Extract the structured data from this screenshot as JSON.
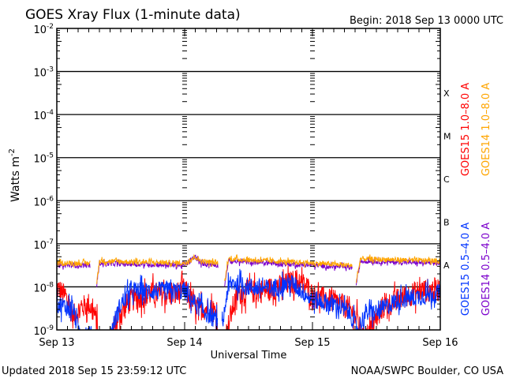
{
  "chart_data": {
    "type": "line",
    "title": "GOES Xray Flux (1-minute data)",
    "begin_label": "Begin:  2018 Sep 13 0000 UTC",
    "xlabel": "Universal Time",
    "ylabel": "Watts m",
    "ylabel_sup": "-2",
    "x_unit": "hours since 2018 Sep 13 0000 UTC",
    "xlim": [
      0,
      72
    ],
    "x_ticks": [
      {
        "h": 0,
        "label": "Sep 13"
      },
      {
        "h": 24,
        "label": "Sep 14"
      },
      {
        "h": 48,
        "label": "Sep 15"
      },
      {
        "h": 72,
        "label": "Sep 16"
      }
    ],
    "y_scale": "log",
    "ylim_exponent": [
      -9,
      -2
    ],
    "y_ticks": [
      {
        "exp": -2,
        "base": "10",
        "sup": "-2"
      },
      {
        "exp": -3,
        "base": "10",
        "sup": "-3"
      },
      {
        "exp": -4,
        "base": "10",
        "sup": "-4"
      },
      {
        "exp": -5,
        "base": "10",
        "sup": "-5"
      },
      {
        "exp": -6,
        "base": "10",
        "sup": "-6"
      },
      {
        "exp": -7,
        "base": "10",
        "sup": "-7"
      },
      {
        "exp": -8,
        "base": "10",
        "sup": "-8"
      },
      {
        "exp": -9,
        "base": "10",
        "sup": "-9"
      }
    ],
    "flare_classes": [
      {
        "label": "X",
        "exp": -3.5
      },
      {
        "label": "M",
        "exp": -4.5
      },
      {
        "label": "C",
        "exp": -5.5
      },
      {
        "label": "B",
        "exp": -6.5
      },
      {
        "label": "A",
        "exp": -7.5
      }
    ],
    "value_unit": "log10(W m^-2)",
    "series": [
      {
        "name": "GOES15 1.0-8.0 A",
        "color": "#ff0000",
        "noise": 0.28,
        "points": [
          [
            0,
            -8.0
          ],
          [
            2,
            -8.3
          ],
          [
            3,
            -8.7
          ],
          [
            4.5,
            -8.5
          ],
          [
            6,
            -8.4
          ],
          [
            7,
            -8.6
          ],
          [
            7.8,
            -9.0
          ],
          null,
          [
            10.5,
            -9.0
          ],
          [
            12,
            -8.6
          ],
          [
            14,
            -8.3
          ],
          [
            18,
            -8.15
          ],
          [
            22,
            -8.2
          ],
          [
            24,
            -8.05
          ],
          [
            25,
            -8.3
          ],
          [
            26.5,
            -8.5
          ],
          [
            28,
            -8.5
          ],
          [
            30.2,
            -8.6
          ],
          null,
          [
            31.8,
            -9.1
          ],
          [
            33,
            -8.5
          ],
          [
            34,
            -8.15
          ],
          [
            38,
            -8.1
          ],
          [
            42,
            -8.0
          ],
          [
            45,
            -7.85
          ],
          [
            47,
            -8.0
          ],
          [
            48,
            -8.2
          ],
          [
            52,
            -8.35
          ],
          [
            55,
            -8.5
          ],
          [
            56.5,
            -8.8
          ],
          [
            57.5,
            -9.2
          ],
          [
            59,
            -9.0
          ],
          [
            61,
            -8.5
          ],
          [
            64,
            -8.3
          ],
          [
            68,
            -8.1
          ],
          [
            72,
            -8.05
          ]
        ]
      },
      {
        "name": "GOES15 0.5-4.0 A",
        "color": "#0033ff",
        "noise": 0.22,
        "points": [
          [
            0,
            -8.4
          ],
          [
            3,
            -8.5
          ],
          [
            4,
            -9.0
          ],
          [
            6,
            -9.1
          ],
          [
            7.8,
            -9.2
          ],
          null,
          [
            10,
            -9.1
          ],
          [
            12,
            -8.4
          ],
          [
            14,
            -8.1
          ],
          [
            18,
            -8.1
          ],
          [
            24,
            -8.1
          ],
          [
            26,
            -8.4
          ],
          [
            28,
            -8.6
          ],
          [
            30.2,
            -8.8
          ],
          null,
          [
            31,
            -9.0
          ],
          [
            32,
            -8.1
          ],
          [
            33,
            -7.9
          ],
          [
            36,
            -8.0
          ],
          [
            40,
            -8.05
          ],
          [
            44,
            -7.9
          ],
          [
            48,
            -8.3
          ],
          [
            52,
            -8.4
          ],
          [
            55,
            -8.6
          ],
          [
            56.5,
            -9.0
          ],
          [
            58,
            -8.6
          ],
          [
            60,
            -8.6
          ],
          [
            64,
            -8.3
          ],
          [
            72,
            -8.15
          ]
        ]
      },
      {
        "name": "GOES14 0.5-4.0 A",
        "color": "#7b00cc",
        "noise": 0.06,
        "points": [
          [
            0,
            -7.5
          ],
          [
            6.3,
            -7.5
          ],
          null,
          [
            7.5,
            -7.95
          ],
          [
            8,
            -7.45
          ],
          [
            24,
            -7.5
          ],
          [
            26,
            -7.3
          ],
          [
            27,
            -7.45
          ],
          [
            30.3,
            -7.5
          ],
          null,
          [
            31.5,
            -7.95
          ],
          [
            32.2,
            -7.4
          ],
          [
            48,
            -7.5
          ],
          [
            55.5,
            -7.55
          ],
          null,
          [
            56.2,
            -7.95
          ],
          [
            57,
            -7.4
          ],
          [
            72,
            -7.45
          ]
        ]
      },
      {
        "name": "GOES14 1.0-8.0 A",
        "color": "#ffa500",
        "noise": 0.06,
        "points": [
          [
            0,
            -7.45
          ],
          [
            6.3,
            -7.45
          ],
          null,
          [
            7.5,
            -7.9
          ],
          [
            8,
            -7.4
          ],
          [
            24,
            -7.45
          ],
          [
            26,
            -7.3
          ],
          [
            27,
            -7.4
          ],
          [
            30.3,
            -7.45
          ],
          null,
          [
            31.5,
            -7.9
          ],
          [
            32.2,
            -7.35
          ],
          [
            48,
            -7.45
          ],
          [
            55.5,
            -7.5
          ],
          null,
          [
            56.2,
            -7.9
          ],
          [
            57,
            -7.35
          ],
          [
            72,
            -7.4
          ]
        ]
      }
    ],
    "legend": [
      {
        "label": "GOES15 1.0–8.0 A",
        "color": "#ff0000"
      },
      {
        "label": "GOES14 1.0–8.0 A",
        "color": "#ffa500"
      },
      {
        "label": "GOES15 0.5–4.0 A",
        "color": "#0033ff"
      },
      {
        "label": "GOES14 0.5–4.0 A",
        "color": "#7b00cc"
      }
    ],
    "legend_placement": "right",
    "grid": true
  },
  "footer": {
    "updated": "Updated 2018 Sep 15 23:59:12 UTC",
    "credit": "NOAA/SWPC Boulder, CO USA"
  }
}
